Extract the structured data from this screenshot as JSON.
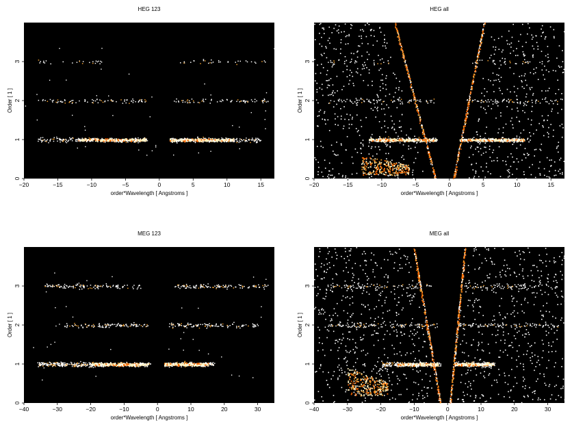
{
  "chart_data": [
    {
      "type": "heatmap",
      "title": "HEG 123",
      "xlabel": "order*Wavelength [ Angstroms ]",
      "ylabel": "Order [ 1 ]",
      "xlim": [
        -20,
        17
      ],
      "ylim": [
        0,
        4
      ],
      "xticks": [
        -20,
        -15,
        -10,
        -5,
        0,
        5,
        10,
        15
      ],
      "yticks": [
        0,
        1,
        2,
        3
      ],
      "colors": {
        "background": "#000000",
        "low": "#ffffff",
        "mid": "#f0a030",
        "high": "#ff6a00",
        "dense": "#fff2c0"
      },
      "bands": [
        {
          "order": 1,
          "ranges": [
            [
              -18,
              -1.8
            ],
            [
              1.8,
              15
            ]
          ],
          "peak": [
            [
              -12,
              -2
            ],
            [
              1.5,
              11
            ]
          ],
          "density": 0.9
        },
        {
          "order": 2,
          "ranges": [
            [
              -18,
              -2
            ],
            [
              2,
              16
            ]
          ],
          "density": 0.35
        },
        {
          "order": 3,
          "ranges": [
            [
              -18,
              -8
            ],
            [
              3,
              16
            ]
          ],
          "density": 0.18
        }
      ],
      "fan": null
    },
    {
      "type": "heatmap",
      "title": "HEG all",
      "xlabel": "order*Wavelength [ Angstroms ]",
      "ylabel": "Order [ 1 ]",
      "xlim": [
        -20,
        17
      ],
      "ylim": [
        0,
        4
      ],
      "xticks": [
        -20,
        -15,
        -10,
        -5,
        0,
        5,
        10,
        15
      ],
      "yticks": [
        0,
        1,
        2,
        3
      ],
      "colors": {
        "background": "#000000",
        "low": "#ffffff",
        "mid": "#f0a030",
        "high": "#ff6a00",
        "dense": "#fff2c0"
      },
      "bands": [
        {
          "order": 1,
          "ranges": [
            [
              -12,
              -1.8
            ],
            [
              1.8,
              11
            ]
          ],
          "peak": [
            [
              -12,
              -2
            ],
            [
              1.5,
              11
            ]
          ],
          "density": 0.9
        },
        {
          "order": 2,
          "ranges": [
            [
              -18,
              -2
            ],
            [
              2,
              16
            ]
          ],
          "density": 0.3
        },
        {
          "order": 3,
          "ranges": [
            [
              -18,
              -8
            ],
            [
              3,
              16
            ]
          ],
          "density": 0.15
        }
      ],
      "fan": {
        "left_x_at_top": -8,
        "left_x_at_zero": -2,
        "right_x_at_top": 5,
        "right_x_at_zero": 0.5,
        "blob": [
          [
            -13,
            -6
          ],
          [
            0.1,
            0.6
          ]
        ]
      }
    },
    {
      "type": "heatmap",
      "title": "MEG 123",
      "xlabel": "order*Wavelength [ Angstroms ]",
      "ylabel": "Order [ 1 ]",
      "xlim": [
        -40,
        35
      ],
      "ylim": [
        0,
        4
      ],
      "xticks": [
        -40,
        -30,
        -20,
        -10,
        0,
        10,
        20,
        30
      ],
      "yticks": [
        0,
        1,
        2,
        3
      ],
      "colors": {
        "background": "#000000",
        "low": "#ffffff",
        "mid": "#f0a030",
        "high": "#ff6a00",
        "dense": "#fff2c0"
      },
      "bands": [
        {
          "order": 1,
          "ranges": [
            [
              -36,
              -2
            ],
            [
              2,
              17
            ]
          ],
          "peak": [
            [
              -20,
              -3
            ],
            [
              2,
              15
            ]
          ],
          "density": 0.9
        },
        {
          "order": 2,
          "ranges": [
            [
              -28,
              -3
            ],
            [
              3,
              30
            ]
          ],
          "density": 0.3
        },
        {
          "order": 3,
          "ranges": [
            [
              -34,
              -5
            ],
            [
              5,
              33
            ]
          ],
          "density": 0.3
        }
      ],
      "fan": null
    },
    {
      "type": "heatmap",
      "title": "MEG all",
      "xlabel": "order*Wavelength [ Angstroms ]",
      "ylabel": "Order [ 1 ]",
      "xlim": [
        -40,
        35
      ],
      "ylim": [
        0,
        4
      ],
      "xticks": [
        -40,
        -30,
        -20,
        -10,
        0,
        10,
        20,
        30
      ],
      "yticks": [
        0,
        1,
        2,
        3
      ],
      "colors": {
        "background": "#000000",
        "low": "#ffffff",
        "mid": "#f0a030",
        "high": "#ff6a00",
        "dense": "#fff2c0"
      },
      "bands": [
        {
          "order": 1,
          "ranges": [
            [
              -20,
              -2
            ],
            [
              2,
              14
            ]
          ],
          "peak": [
            [
              -15,
              -3
            ],
            [
              2,
              13
            ]
          ],
          "density": 0.9
        },
        {
          "order": 2,
          "ranges": [
            [
              -36,
              -3
            ],
            [
              3,
              33
            ]
          ],
          "density": 0.25
        },
        {
          "order": 3,
          "ranges": [
            [
              -36,
              -5
            ],
            [
              5,
              33
            ]
          ],
          "density": 0.2
        }
      ],
      "fan": {
        "left_x_at_top": -10,
        "left_x_at_zero": -2,
        "right_x_at_top": 5,
        "right_x_at_zero": 0.5,
        "blob": [
          [
            -30,
            -18
          ],
          [
            0.2,
            0.9
          ]
        ]
      }
    }
  ]
}
